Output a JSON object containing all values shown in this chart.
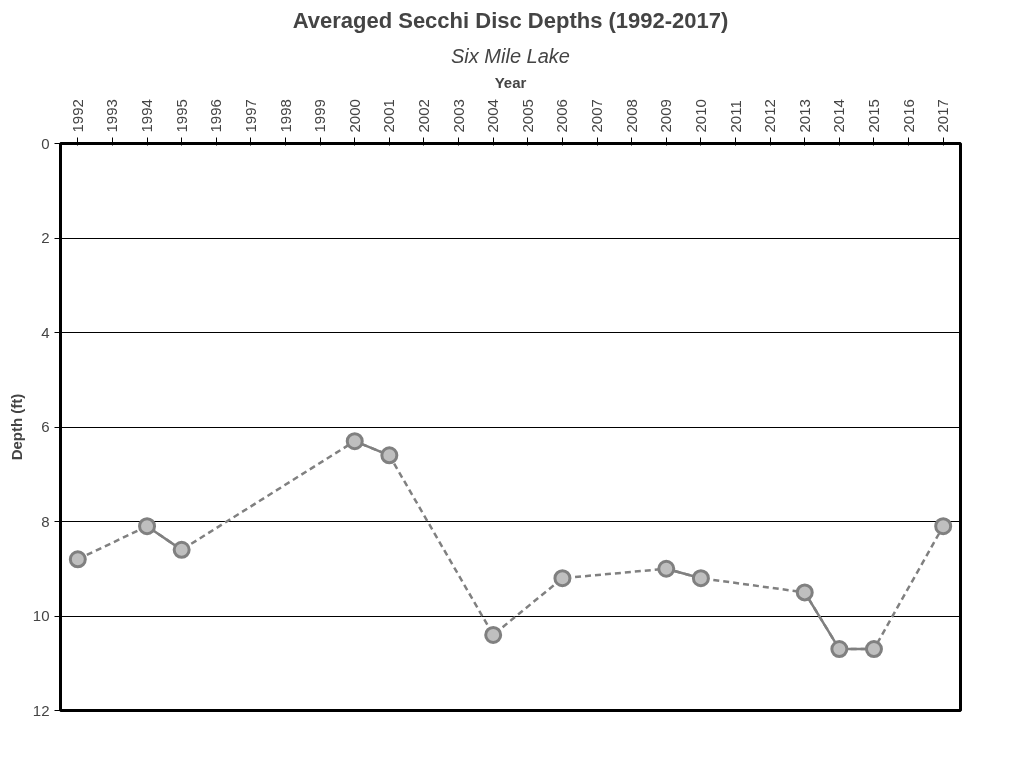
{
  "chart_data": {
    "type": "line",
    "title": "Averaged Secchi Disc Depths (1992-2017)",
    "subtitle": "Six Mile Lake",
    "xlabel": "Year",
    "ylabel": "Depth (ft)",
    "x": [
      1992,
      1993,
      1994,
      1995,
      1996,
      1997,
      1998,
      1999,
      2000,
      2001,
      2002,
      2003,
      2004,
      2005,
      2006,
      2007,
      2008,
      2009,
      2010,
      2011,
      2012,
      2013,
      2014,
      2015,
      2016,
      2017
    ],
    "xlim": [
      1991.5,
      2017.5
    ],
    "xticks": [
      1992,
      1993,
      1994,
      1995,
      1996,
      1997,
      1998,
      1999,
      2000,
      2001,
      2002,
      2003,
      2004,
      2005,
      2006,
      2007,
      2008,
      2009,
      2010,
      2011,
      2012,
      2013,
      2014,
      2015,
      2016,
      2017
    ],
    "ylim": [
      12,
      0
    ],
    "yticks": [
      0,
      2,
      4,
      6,
      8,
      10,
      12
    ],
    "grid": "y",
    "legend": false,
    "series": [
      {
        "color": "#808080",
        "line_style": "dashed",
        "marker": "circle",
        "x": [
          1992,
          1994,
          1995,
          2000,
          2001,
          2004,
          2006,
          2009,
          2010,
          2013,
          2014,
          2015,
          2017
        ],
        "values": [
          8.8,
          8.1,
          8.6,
          6.3,
          6.6,
          10.4,
          9.2,
          9.0,
          9.2,
          9.5,
          10.7,
          10.7,
          8.1
        ]
      },
      {
        "color": "#808080",
        "line_style": "solid",
        "values": [
          8.8,
          null,
          8.1,
          8.6,
          null,
          null,
          null,
          null,
          6.3,
          6.6,
          null,
          null,
          10.4,
          null,
          9.2,
          null,
          null,
          9.0,
          9.2,
          null,
          null,
          9.5,
          10.7,
          10.7,
          null,
          8.1
        ]
      }
    ]
  }
}
